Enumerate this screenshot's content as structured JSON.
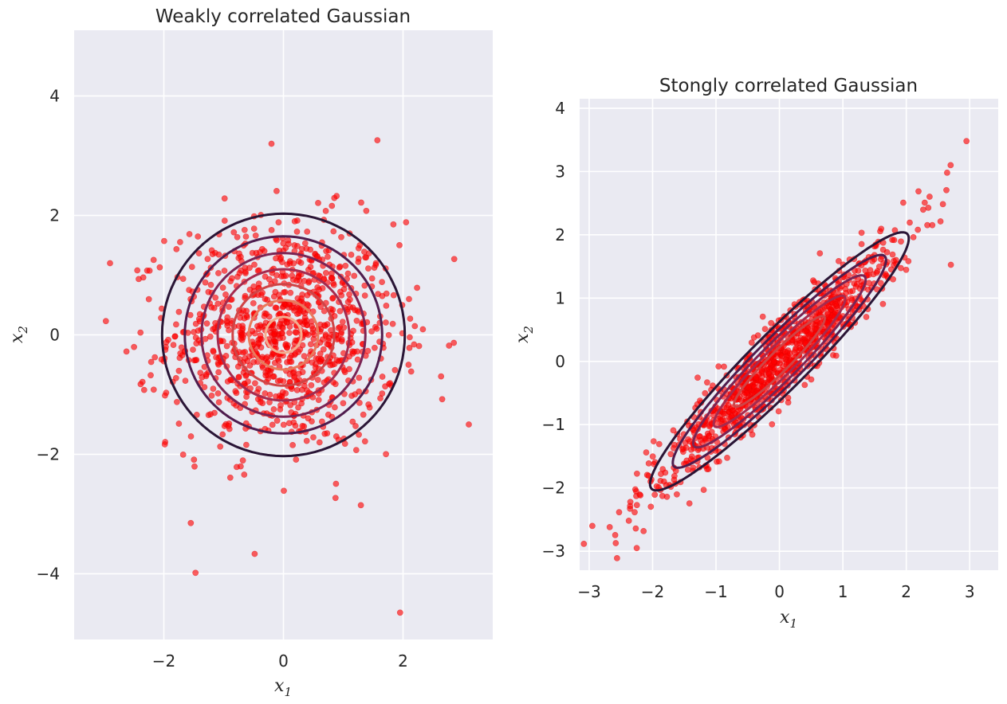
{
  "chart_data": [
    {
      "type": "scatter",
      "title": "Weakly correlated Gaussian",
      "xlabel": "x1",
      "ylabel": "x2",
      "xlim": [
        -3.5,
        3.5
      ],
      "ylim": [
        -5.1,
        5.1
      ],
      "xticks": [
        -2,
        0,
        2
      ],
      "yticks": [
        -4,
        -2,
        0,
        2,
        4
      ],
      "xtick_labels": [
        "−2",
        "0",
        "2"
      ],
      "ytick_labels": [
        "−4",
        "−2",
        "0",
        "2",
        "4"
      ],
      "grid": true,
      "point_color": "#ff0000",
      "sample": {
        "n_points": 1000,
        "mean": [
          0,
          0
        ],
        "std": [
          0.95,
          0.95
        ],
        "correlation": 0.0
      },
      "outliers": [
        [
          1.95,
          -4.65
        ],
        [
          -0.2,
          3.2
        ],
        [
          -1.55,
          -3.15
        ],
        [
          3.1,
          -1.5
        ],
        [
          -2.9,
          1.2
        ]
      ],
      "contours": {
        "type": "contour",
        "levels": [
          {
            "rx": 2.03,
            "ry": 2.03,
            "color": "#2a1536"
          },
          {
            "rx": 1.65,
            "ry": 1.65,
            "color": "#4f1c4e"
          },
          {
            "rx": 1.37,
            "ry": 1.37,
            "color": "#7b2454"
          },
          {
            "rx": 1.1,
            "ry": 1.1,
            "color": "#a52b4f"
          },
          {
            "rx": 0.85,
            "ry": 0.85,
            "color": "#cf4446"
          },
          {
            "rx": 0.58,
            "ry": 0.58,
            "color": "#e97a5c"
          },
          {
            "rx": 0.3,
            "ry": 0.3,
            "color": "#f3ad8f"
          }
        ]
      }
    },
    {
      "type": "scatter",
      "title": "Stongly correlated Gaussian",
      "xlabel": "x1",
      "ylabel": "x2",
      "xlim": [
        -3.15,
        3.45
      ],
      "ylim": [
        -3.3,
        4.15
      ],
      "xticks": [
        -3,
        -2,
        -1,
        0,
        1,
        2,
        3
      ],
      "yticks": [
        -3,
        -2,
        -1,
        0,
        1,
        2,
        3,
        4
      ],
      "xtick_labels": [
        "−3",
        "−2",
        "−1",
        "0",
        "1",
        "2",
        "3"
      ],
      "ytick_labels": [
        "−3",
        "−2",
        "−1",
        "0",
        "1",
        "2",
        "3",
        "4"
      ],
      "grid": true,
      "point_color": "#ff0000",
      "sample": {
        "n_points": 1000,
        "mean": [
          0,
          0
        ],
        "std": [
          1.0,
          1.0
        ],
        "correlation": 0.95
      },
      "outliers": [
        [
          2.95,
          3.48
        ],
        [
          -2.95,
          -2.6
        ],
        [
          -2.25,
          -2.95
        ],
        [
          2.7,
          3.1
        ]
      ],
      "contours": {
        "type": "contour",
        "levels": [
          {
            "rx": 2.85,
            "ry": 0.45,
            "angle": 45,
            "color": "#2a1536"
          },
          {
            "rx": 2.35,
            "ry": 0.37,
            "angle": 45,
            "color": "#4f1c4e"
          },
          {
            "rx": 1.9,
            "ry": 0.3,
            "angle": 45,
            "color": "#7b2454"
          },
          {
            "rx": 1.45,
            "ry": 0.23,
            "angle": 45,
            "color": "#a52b4f"
          },
          {
            "rx": 1.0,
            "ry": 0.16,
            "angle": 45,
            "color": "#cf4446"
          }
        ]
      }
    }
  ]
}
